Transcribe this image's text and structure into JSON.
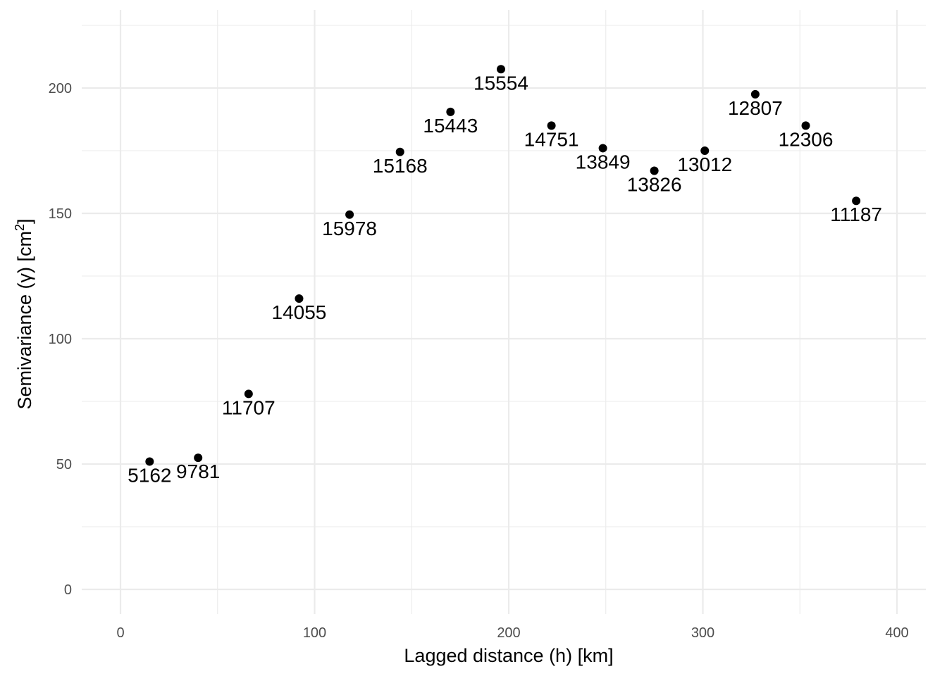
{
  "chart_data": {
    "type": "scatter",
    "xlabel": "Lagged distance (h) [km]",
    "ylabel": {
      "text": "Semivariance (γ) [cm",
      "superscript": "2",
      "suffix": "]"
    },
    "xlim": [
      -20,
      415
    ],
    "ylim": [
      -10,
      225
    ],
    "x_ticks": [
      0,
      100,
      200,
      300,
      400
    ],
    "y_ticks": [
      0,
      50,
      100,
      150,
      200
    ],
    "grid": true,
    "legend": "none",
    "point_color": "#000000",
    "series": [
      {
        "points": [
          {
            "x": 15,
            "y": 51,
            "label": "5162"
          },
          {
            "x": 40,
            "y": 52.5,
            "label": "9781"
          },
          {
            "x": 66,
            "y": 78,
            "label": "11707"
          },
          {
            "x": 92,
            "y": 116,
            "label": "14055"
          },
          {
            "x": 118,
            "y": 149.5,
            "label": "15978"
          },
          {
            "x": 144,
            "y": 174.5,
            "label": "15168"
          },
          {
            "x": 170,
            "y": 190.5,
            "label": "15443"
          },
          {
            "x": 196,
            "y": 207.5,
            "label": "15554"
          },
          {
            "x": 222,
            "y": 185,
            "label": "14751"
          },
          {
            "x": 248.5,
            "y": 176,
            "label": "13849"
          },
          {
            "x": 275,
            "y": 167,
            "label": "13826"
          },
          {
            "x": 301,
            "y": 175,
            "label": "13012"
          },
          {
            "x": 327,
            "y": 197.5,
            "label": "12807"
          },
          {
            "x": 353,
            "y": 185,
            "label": "12306"
          },
          {
            "x": 379,
            "y": 155,
            "label": "11187"
          }
        ]
      }
    ]
  }
}
